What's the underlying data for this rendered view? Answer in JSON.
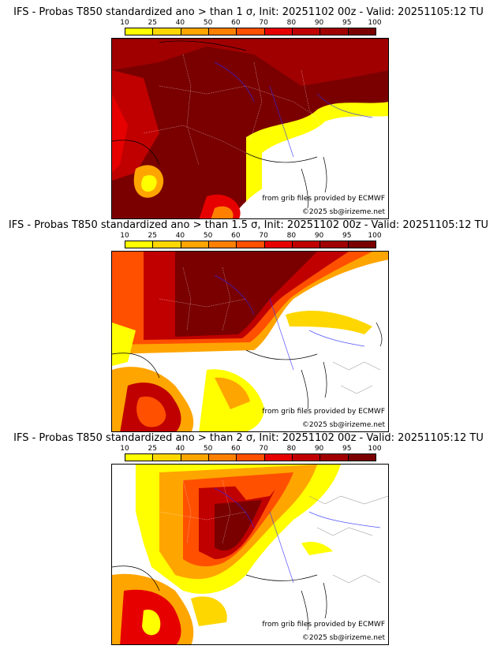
{
  "legend": {
    "ticks": [
      "10",
      "25",
      "40",
      "50",
      "60",
      "70",
      "80",
      "90",
      "95",
      "100"
    ],
    "colors": [
      "#ffff00",
      "#ffd700",
      "#ffa500",
      "#ff8000",
      "#ff5000",
      "#e60000",
      "#c00000",
      "#a00000",
      "#7a0000"
    ]
  },
  "panels": [
    {
      "title": "IFS - Probas T850  standardized ano > than 1 σ, Init: 20251102 00z - Valid: 20251105:12 TU",
      "source_credit": "from grib files provided by ECMWF",
      "copyright": "©2025 sb@irizeme.net",
      "coverage_level": 0.9
    },
    {
      "title": "IFS - Probas T850  standardized ano > than 1.5 σ, Init: 20251102 00z - Valid: 20251105:12 TU",
      "source_credit": "from grib files provided by ECMWF",
      "copyright": "©2025 sb@irizeme.net",
      "coverage_level": 0.65
    },
    {
      "title": "IFS - Probas T850  standardized ano > than 2 σ, Init: 20251102 00z - Valid: 20251105:12 TU",
      "source_credit": "from grib files provided by ECMWF",
      "copyright": "©2025 sb@irizeme.net",
      "coverage_level": 0.4
    }
  ]
}
